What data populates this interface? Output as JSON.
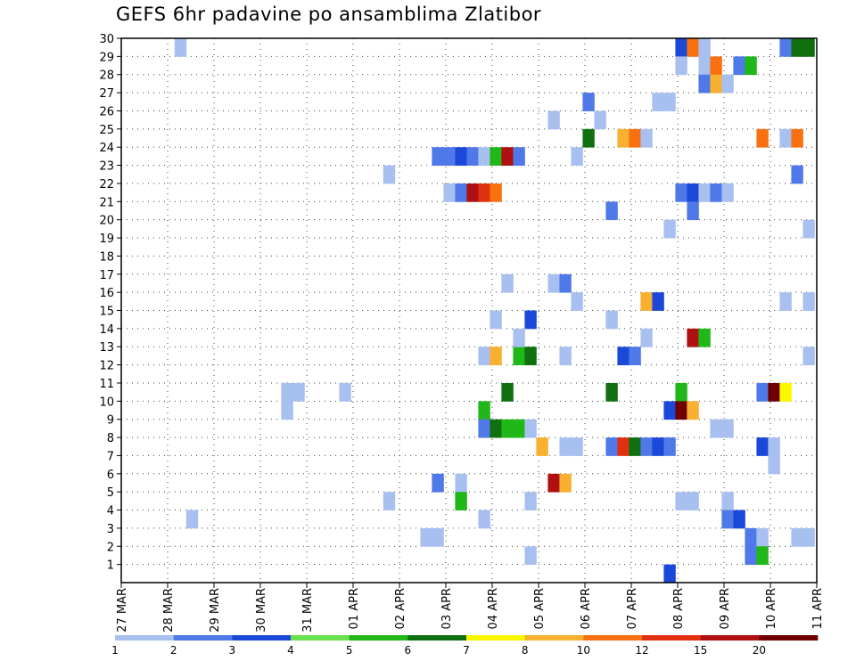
{
  "chart_data": {
    "type": "heatmap",
    "title": "GEFS 6hr padavine po ansamblima Zlatibor",
    "x_ticks": [
      "27 MAR",
      "28 MAR",
      "29 MAR",
      "30 MAR",
      "31 MAR",
      "01 APR",
      "02 APR",
      "03 APR",
      "04 APR",
      "05 APR",
      "06 APR",
      "07 APR",
      "08 APR",
      "09 APR",
      "10 APR",
      "11 APR"
    ],
    "y_ticks": [
      "1",
      "2",
      "3",
      "4",
      "5",
      "6",
      "7",
      "8",
      "9",
      "10",
      "11",
      "12",
      "13",
      "14",
      "15",
      "16",
      "17",
      "18",
      "19",
      "20",
      "21",
      "22",
      "23",
      "24",
      "25",
      "26",
      "27",
      "28",
      "29",
      "30"
    ],
    "y_range": [
      0,
      30
    ],
    "grid": true,
    "legend_position": "bottom",
    "legend": {
      "labels": [
        "1",
        "2",
        "3",
        "4",
        "5",
        "6",
        "7",
        "8",
        "10",
        "12",
        "15",
        "20"
      ],
      "colors": [
        "#a8c0f0",
        "#4f78e8",
        "#1a48d8",
        "#68e050",
        "#20b818",
        "#107010",
        "#f8f800",
        "#f8b030",
        "#f87010",
        "#e03010",
        "#b01010",
        "#700000"
      ]
    },
    "cells": [
      {
        "d": 1.15,
        "m": 29,
        "v": 1
      },
      {
        "d": 1.4,
        "m": 3,
        "v": 1
      },
      {
        "d": 3.45,
        "m": 10,
        "v": 1
      },
      {
        "d": 3.7,
        "m": 10,
        "v": 1
      },
      {
        "d": 3.45,
        "m": 9,
        "v": 1
      },
      {
        "d": 4.7,
        "m": 10,
        "v": 1
      },
      {
        "d": 5.65,
        "m": 22,
        "v": 1
      },
      {
        "d": 5.65,
        "m": 4,
        "v": 1
      },
      {
        "d": 6.45,
        "m": 2,
        "v": 1
      },
      {
        "d": 6.7,
        "m": 2,
        "v": 1
      },
      {
        "d": 6.7,
        "m": 23,
        "v": 2
      },
      {
        "d": 6.95,
        "m": 23,
        "v": 2
      },
      {
        "d": 7.2,
        "m": 23,
        "v": 3
      },
      {
        "d": 7.45,
        "m": 23,
        "v": 2
      },
      {
        "d": 7.7,
        "m": 23,
        "v": 1
      },
      {
        "d": 7.95,
        "m": 23,
        "v": 5
      },
      {
        "d": 8.2,
        "m": 23,
        "v": 15
      },
      {
        "d": 8.45,
        "m": 23,
        "v": 2
      },
      {
        "d": 6.95,
        "m": 21,
        "v": 1
      },
      {
        "d": 7.2,
        "m": 21,
        "v": 2
      },
      {
        "d": 7.45,
        "m": 21,
        "v": 15
      },
      {
        "d": 7.7,
        "m": 21,
        "v": 12
      },
      {
        "d": 7.95,
        "m": 21,
        "v": 10
      },
      {
        "d": 6.7,
        "m": 5,
        "v": 2
      },
      {
        "d": 7.2,
        "m": 5,
        "v": 1
      },
      {
        "d": 7.2,
        "m": 4,
        "v": 5
      },
      {
        "d": 7.7,
        "m": 3,
        "v": 1
      },
      {
        "d": 7.7,
        "m": 12,
        "v": 1
      },
      {
        "d": 7.95,
        "m": 12,
        "v": 8
      },
      {
        "d": 8.45,
        "m": 12,
        "v": 5
      },
      {
        "d": 8.7,
        "m": 12,
        "v": 6
      },
      {
        "d": 7.7,
        "m": 9,
        "v": 5
      },
      {
        "d": 7.7,
        "m": 8,
        "v": 2
      },
      {
        "d": 7.95,
        "m": 8,
        "v": 6
      },
      {
        "d": 8.2,
        "m": 8,
        "v": 5
      },
      {
        "d": 8.45,
        "m": 8,
        "v": 5
      },
      {
        "d": 8.7,
        "m": 8,
        "v": 1
      },
      {
        "d": 7.95,
        "m": 14,
        "v": 1
      },
      {
        "d": 8.2,
        "m": 16,
        "v": 1
      },
      {
        "d": 8.2,
        "m": 10,
        "v": 6
      },
      {
        "d": 8.45,
        "m": 13,
        "v": 1
      },
      {
        "d": 8.7,
        "m": 14,
        "v": 3
      },
      {
        "d": 8.7,
        "m": 4,
        "v": 1
      },
      {
        "d": 8.7,
        "m": 1,
        "v": 1
      },
      {
        "d": 8.95,
        "m": 7,
        "v": 8
      },
      {
        "d": 9.2,
        "m": 25,
        "v": 1
      },
      {
        "d": 9.2,
        "m": 16,
        "v": 1
      },
      {
        "d": 9.45,
        "m": 16,
        "v": 2
      },
      {
        "d": 9.2,
        "m": 5,
        "v": 15
      },
      {
        "d": 9.45,
        "m": 5,
        "v": 8
      },
      {
        "d": 9.45,
        "m": 12,
        "v": 1
      },
      {
        "d": 9.45,
        "m": 7,
        "v": 1
      },
      {
        "d": 9.7,
        "m": 7,
        "v": 1
      },
      {
        "d": 9.7,
        "m": 23,
        "v": 1
      },
      {
        "d": 9.7,
        "m": 15,
        "v": 1
      },
      {
        "d": 9.95,
        "m": 26,
        "v": 2
      },
      {
        "d": 9.95,
        "m": 24,
        "v": 6
      },
      {
        "d": 10.2,
        "m": 25,
        "v": 1
      },
      {
        "d": 10.45,
        "m": 20,
        "v": 2
      },
      {
        "d": 10.45,
        "m": 14,
        "v": 1
      },
      {
        "d": 10.45,
        "m": 10,
        "v": 6
      },
      {
        "d": 10.45,
        "m": 7,
        "v": 2
      },
      {
        "d": 10.7,
        "m": 7,
        "v": 12
      },
      {
        "d": 10.95,
        "m": 7,
        "v": 6
      },
      {
        "d": 11.2,
        "m": 7,
        "v": 2
      },
      {
        "d": 11.45,
        "m": 7,
        "v": 3
      },
      {
        "d": 11.7,
        "m": 7,
        "v": 2
      },
      {
        "d": 10.7,
        "m": 24,
        "v": 8
      },
      {
        "d": 10.95,
        "m": 24,
        "v": 10
      },
      {
        "d": 11.2,
        "m": 24,
        "v": 1
      },
      {
        "d": 10.7,
        "m": 12,
        "v": 3
      },
      {
        "d": 10.95,
        "m": 12,
        "v": 2
      },
      {
        "d": 11.2,
        "m": 15,
        "v": 8
      },
      {
        "d": 11.45,
        "m": 15,
        "v": 3
      },
      {
        "d": 11.2,
        "m": 13,
        "v": 1
      },
      {
        "d": 11.45,
        "m": 26,
        "v": 1
      },
      {
        "d": 11.7,
        "m": 26,
        "v": 1
      },
      {
        "d": 11.7,
        "m": 19,
        "v": 1
      },
      {
        "d": 11.7,
        "m": 9,
        "v": 3
      },
      {
        "d": 11.7,
        "m": 0,
        "v": 3
      },
      {
        "d": 11.95,
        "m": 29,
        "v": 3
      },
      {
        "d": 12.2,
        "m": 29,
        "v": 10
      },
      {
        "d": 12.45,
        "m": 29,
        "v": 1
      },
      {
        "d": 11.95,
        "m": 28,
        "v": 1
      },
      {
        "d": 12.45,
        "m": 28,
        "v": 1
      },
      {
        "d": 12.7,
        "m": 28,
        "v": 10
      },
      {
        "d": 12.45,
        "m": 27,
        "v": 2
      },
      {
        "d": 12.7,
        "m": 27,
        "v": 8
      },
      {
        "d": 12.95,
        "m": 27,
        "v": 1
      },
      {
        "d": 11.95,
        "m": 21,
        "v": 2
      },
      {
        "d": 12.2,
        "m": 21,
        "v": 3
      },
      {
        "d": 12.45,
        "m": 21,
        "v": 1
      },
      {
        "d": 12.7,
        "m": 21,
        "v": 2
      },
      {
        "d": 12.95,
        "m": 21,
        "v": 1
      },
      {
        "d": 12.2,
        "m": 20,
        "v": 2
      },
      {
        "d": 12.2,
        "m": 13,
        "v": 15
      },
      {
        "d": 12.45,
        "m": 13,
        "v": 5
      },
      {
        "d": 11.95,
        "m": 10,
        "v": 5
      },
      {
        "d": 11.95,
        "m": 9,
        "v": 20
      },
      {
        "d": 12.2,
        "m": 9,
        "v": 8
      },
      {
        "d": 12.7,
        "m": 8,
        "v": 1
      },
      {
        "d": 12.95,
        "m": 8,
        "v": 1
      },
      {
        "d": 11.95,
        "m": 4,
        "v": 1
      },
      {
        "d": 12.2,
        "m": 4,
        "v": 1
      },
      {
        "d": 12.95,
        "m": 4,
        "v": 1
      },
      {
        "d": 12.95,
        "m": 3,
        "v": 2
      },
      {
        "d": 13.2,
        "m": 3,
        "v": 3
      },
      {
        "d": 13.2,
        "m": 28,
        "v": 2
      },
      {
        "d": 13.45,
        "m": 28,
        "v": 5
      },
      {
        "d": 13.7,
        "m": 24,
        "v": 10
      },
      {
        "d": 13.45,
        "m": 2,
        "v": 2
      },
      {
        "d": 13.7,
        "m": 2,
        "v": 1
      },
      {
        "d": 13.45,
        "m": 1,
        "v": 2
      },
      {
        "d": 13.7,
        "m": 1,
        "v": 5
      },
      {
        "d": 13.7,
        "m": 10,
        "v": 2
      },
      {
        "d": 13.95,
        "m": 10,
        "v": 20
      },
      {
        "d": 14.2,
        "m": 10,
        "v": 7
      },
      {
        "d": 13.7,
        "m": 7,
        "v": 3
      },
      {
        "d": 13.95,
        "m": 7,
        "v": 1
      },
      {
        "d": 13.95,
        "m": 6,
        "v": 1
      },
      {
        "d": 14.2,
        "m": 29,
        "v": 2
      },
      {
        "d": 14.45,
        "m": 29,
        "v": 6
      },
      {
        "d": 14.7,
        "m": 29,
        "v": 6
      },
      {
        "d": 14.2,
        "m": 24,
        "v": 1
      },
      {
        "d": 14.45,
        "m": 24,
        "v": 10
      },
      {
        "d": 14.45,
        "m": 22,
        "v": 2
      },
      {
        "d": 14.7,
        "m": 19,
        "v": 1
      },
      {
        "d": 14.2,
        "m": 15,
        "v": 1
      },
      {
        "d": 14.7,
        "m": 15,
        "v": 1
      },
      {
        "d": 14.7,
        "m": 12,
        "v": 1
      },
      {
        "d": 14.45,
        "m": 2,
        "v": 1
      },
      {
        "d": 14.7,
        "m": 2,
        "v": 1
      }
    ]
  }
}
